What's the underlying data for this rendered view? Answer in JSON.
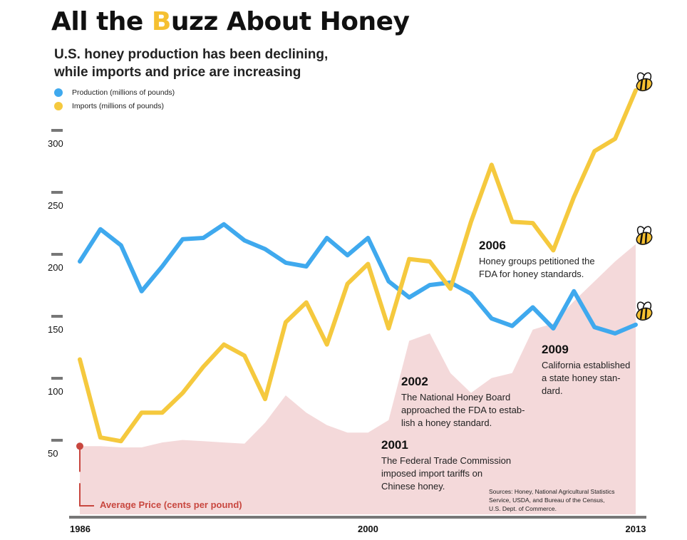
{
  "title": {
    "prefix": "All the ",
    "b_letter": "B",
    "rest": "uzz About Honey"
  },
  "subtitle": [
    "U.S. honey production has been declining,",
    "while imports and price are increasing"
  ],
  "colors": {
    "production": "#3fa9ee",
    "imports": "#f5c93e",
    "price": "#f4d9da",
    "price_accent": "#c8473f",
    "axis": "#777777"
  },
  "legend": [
    {
      "label": "Production (millions of pounds)",
      "color": "#3fa9ee"
    },
    {
      "label": "Imports (millions of pounds)",
      "color": "#f5c93e"
    }
  ],
  "annotations": [
    {
      "year": "2006",
      "text": [
        "Honey groups petitioned the",
        "FDA for honey standards."
      ]
    },
    {
      "year": "2009",
      "text": [
        "California established",
        "a state honey stan-",
        "dard."
      ]
    },
    {
      "year": "2002",
      "text": [
        "The National Honey Board",
        "approached the FDA to estab-",
        "lish a honey standard."
      ]
    },
    {
      "year": "2001",
      "text": [
        "The Federal Trade Commission",
        "imposed import tariffs on",
        "Chinese honey."
      ]
    }
  ],
  "sources": [
    "Sources: Honey, National Agricultural Statistics",
    "Service, USDA, and Bureau of the Census,",
    "U.S. Dept. of  Commerce."
  ],
  "price_label": "Average Price (cents per pound)",
  "chart_data": {
    "type": "line",
    "title": "All the Buzz About Honey",
    "x": [
      1986,
      1987,
      1988,
      1989,
      1990,
      1991,
      1992,
      1993,
      1994,
      1995,
      1996,
      1997,
      1998,
      1999,
      2000,
      2001,
      2002,
      2003,
      2004,
      2005,
      2006,
      2007,
      2008,
      2009,
      2010,
      2011,
      2012,
      2013
    ],
    "x_tick_labels": [
      "1986",
      "2000",
      "2013"
    ],
    "y_ticks": [
      50,
      100,
      150,
      200,
      250,
      300
    ],
    "ylim": [
      0,
      330
    ],
    "series": [
      {
        "name": "Production (millions of pounds)",
        "values": [
          204,
          230,
          217,
          180,
          200,
          222,
          223,
          234,
          221,
          214,
          203,
          200,
          223,
          209,
          223,
          188,
          175,
          185,
          187,
          178,
          158,
          152,
          167,
          150,
          180,
          151,
          146,
          153
        ]
      },
      {
        "name": "Imports (millions of pounds)",
        "values": [
          125,
          62,
          59,
          82,
          82,
          98,
          119,
          137,
          128,
          93,
          155,
          171,
          137,
          186,
          202,
          150,
          206,
          204,
          182,
          236,
          282,
          236,
          235,
          213,
          256,
          293,
          303,
          342
        ]
      },
      {
        "name": "Average Price (cents per pound)",
        "type": "area",
        "values": [
          55,
          55,
          54,
          54,
          58,
          60,
          59,
          58,
          57,
          74,
          96,
          82,
          72,
          66,
          66,
          76,
          140,
          146,
          114,
          98,
          110,
          114,
          149,
          154,
          172,
          188,
          204,
          218
        ]
      }
    ]
  }
}
